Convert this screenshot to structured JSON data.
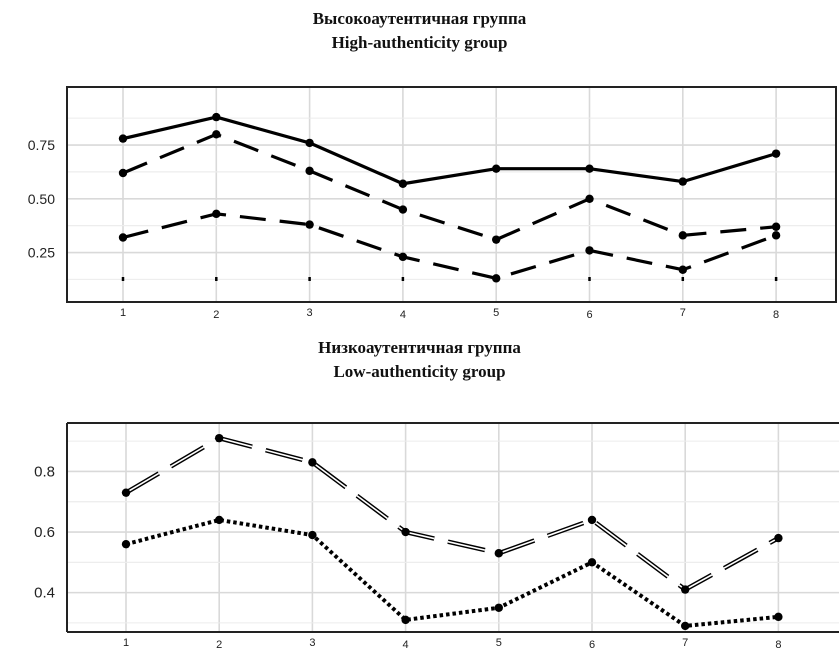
{
  "chart_data": [
    {
      "type": "line",
      "title": "Высокоаутентичная группа",
      "subtitle": "High-authenticity group",
      "xlabel": "",
      "ylabel": "",
      "categories": [
        "1",
        "2",
        "3",
        "4",
        "5",
        "6",
        "7",
        "8"
      ],
      "y_ticks": [
        "0.25",
        "0.50",
        "0.75"
      ],
      "ylim": [
        0.02,
        1.02
      ],
      "grid": true,
      "series": [
        {
          "values": [
            0.78,
            0.88,
            0.76,
            0.57,
            0.64,
            0.64,
            0.58,
            0.71
          ],
          "line_style": "solid",
          "color": "#000000"
        },
        {
          "values": [
            0.62,
            0.8,
            0.63,
            0.45,
            0.31,
            0.5,
            0.33,
            0.37
          ],
          "line_style": "long-dash",
          "color": "#000000"
        },
        {
          "values": [
            0.32,
            0.43,
            0.38,
            0.23,
            0.13,
            0.26,
            0.17,
            0.33
          ],
          "line_style": "long-dash",
          "color": "#000000"
        }
      ]
    },
    {
      "type": "line",
      "title": "Низкоаутентичная группа",
      "subtitle": "Low-authenticity group",
      "xlabel": "",
      "ylabel": "",
      "categories": [
        "1",
        "2",
        "3",
        "4",
        "5",
        "6",
        "7",
        "8"
      ],
      "y_ticks": [
        "0.4",
        "0.6",
        "0.8"
      ],
      "ylim": [
        0.27,
        0.96
      ],
      "grid": true,
      "series": [
        {
          "values": [
            0.73,
            0.91,
            0.83,
            0.6,
            0.53,
            0.64,
            0.41,
            0.58
          ],
          "line_style": "double-dash",
          "color": "#000000"
        },
        {
          "values": [
            0.56,
            0.64,
            0.59,
            0.31,
            0.35,
            0.5,
            0.29,
            0.32
          ],
          "line_style": "dotted",
          "color": "#000000"
        }
      ]
    }
  ]
}
